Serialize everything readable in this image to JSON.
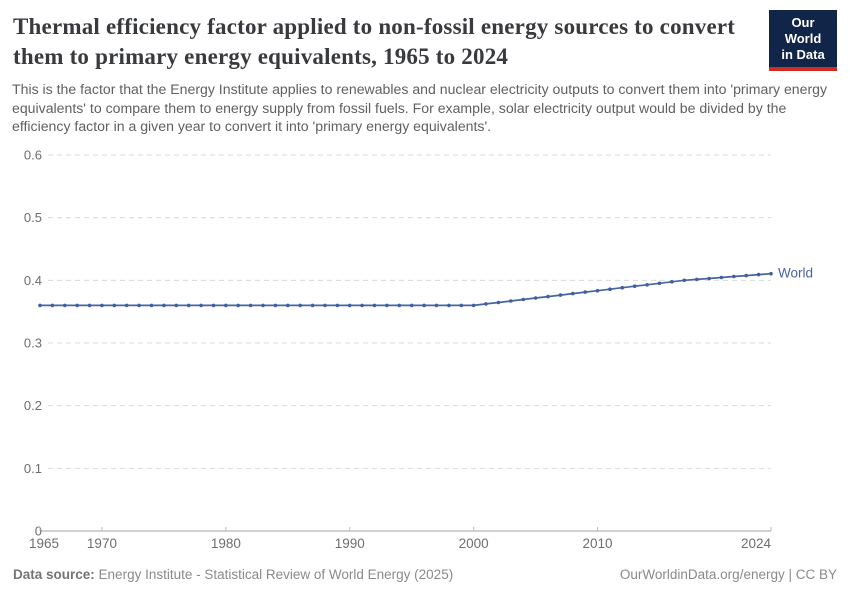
{
  "header": {
    "title": "Thermal efficiency factor applied to non-fossil energy sources to convert them to primary energy equivalents, 1965 to 2024",
    "subtitle": "This is the factor that the Energy Institute applies to renewables and nuclear electricity outputs to convert them into 'primary energy equivalents' to compare them to energy supply from fossil fuels. For example, solar electricity output would be divided by the efficiency factor in a given year to convert it into 'primary energy equivalents'."
  },
  "logo": {
    "line1": "Our World",
    "line2": "in Data",
    "bg_color": "#102548",
    "accent_color": "#cf2d24"
  },
  "footer": {
    "source_label": "Data source:",
    "source_text": "Energy Institute - Statistical Review of World Energy (2025)",
    "credit": "OurWorldinData.org/energy | CC BY"
  },
  "chart_data": {
    "type": "line",
    "title": "Thermal efficiency factor applied to non-fossil energy sources to convert them to primary energy equivalents, 1965 to 2024",
    "xlabel": "",
    "ylabel": "",
    "xlim": [
      1965,
      2024
    ],
    "ylim": [
      0,
      0.6
    ],
    "x_ticks": [
      1965,
      1970,
      1980,
      1990,
      2000,
      2010,
      2024
    ],
    "y_ticks": [
      0,
      0.1,
      0.2,
      0.3,
      0.4,
      0.5,
      0.6
    ],
    "grid": "dashed-horizontal",
    "legend_position": "end-of-line-label",
    "colors": {
      "grid": "#d9d9d9",
      "axis": "#a3a3a3",
      "tick": "#bdbdbd",
      "tick_label": "#6e6e6e"
    },
    "series": [
      {
        "name": "World",
        "color": "#4864a0",
        "dot_color": "#3f5f9f",
        "x": [
          1965,
          1966,
          1967,
          1968,
          1969,
          1970,
          1971,
          1972,
          1973,
          1974,
          1975,
          1976,
          1977,
          1978,
          1979,
          1980,
          1981,
          1982,
          1983,
          1984,
          1985,
          1986,
          1987,
          1988,
          1989,
          1990,
          1991,
          1992,
          1993,
          1994,
          1995,
          1996,
          1997,
          1998,
          1999,
          2000,
          2001,
          2002,
          2003,
          2004,
          2005,
          2006,
          2007,
          2008,
          2009,
          2010,
          2011,
          2012,
          2013,
          2014,
          2015,
          2016,
          2017,
          2018,
          2019,
          2020,
          2021,
          2022,
          2023,
          2024
        ],
        "values": [
          0.36,
          0.36,
          0.36,
          0.36,
          0.36,
          0.36,
          0.36,
          0.36,
          0.36,
          0.36,
          0.36,
          0.36,
          0.36,
          0.36,
          0.36,
          0.36,
          0.36,
          0.36,
          0.36,
          0.36,
          0.36,
          0.36,
          0.36,
          0.36,
          0.36,
          0.36,
          0.36,
          0.36,
          0.36,
          0.36,
          0.36,
          0.36,
          0.36,
          0.36,
          0.36,
          0.36,
          0.3624,
          0.3647,
          0.3671,
          0.3694,
          0.3718,
          0.3741,
          0.3765,
          0.3788,
          0.3812,
          0.3835,
          0.3859,
          0.3882,
          0.3906,
          0.3929,
          0.3953,
          0.3976,
          0.4,
          0.4015,
          0.403,
          0.4045,
          0.4061,
          0.4076,
          0.4091,
          0.4106
        ]
      }
    ]
  }
}
